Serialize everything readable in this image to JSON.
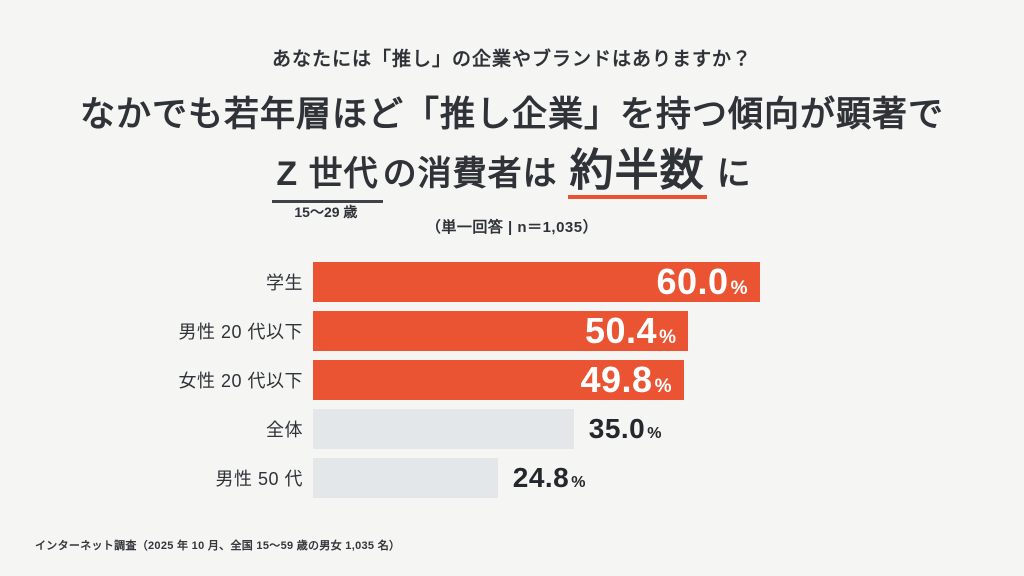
{
  "page": {
    "question": "あなたには「推し」の企業やブランドはありますか？",
    "headline": {
      "line1": "なかでも若年層ほど「推し企業」を持つ傾向が顕著で",
      "line2_zgen": "Z 世代",
      "line2_zgen_note": "15〜29 歳",
      "line2_mid": "の消費者は",
      "line2_emphasis": "約半数",
      "line2_suffix": "に"
    },
    "subtitle": "（単一回答 | n＝1,035）",
    "footnote": "インターネット調査（2025 年 10 月、全国 15〜59 歳の男女 1,035 名）"
  },
  "colors": {
    "accent_orange": "#EB5433",
    "bar_gray": "#E4E7E9",
    "text_dark": "#2F3338",
    "background": "#F5F5F4",
    "underline_dark": "#3F4348",
    "value_text_inside": "#FFFFFF",
    "value_text_outside": "#24272B"
  },
  "chart_data": {
    "type": "bar",
    "orientation": "horizontal",
    "title": "あなたには「推し」の企業やブランドはありますか？",
    "subtitle": "（単一回答 | n＝1,035）",
    "categories": [
      "学生",
      "男性 20 代以下",
      "女性 20 代以下",
      "全体",
      "男性 50 代"
    ],
    "values": [
      60.0,
      50.4,
      49.8,
      35.0,
      24.8
    ],
    "value_labels": [
      "60.0",
      "50.4",
      "49.8",
      "35.0",
      "24.8"
    ],
    "unit": "%",
    "highlighted": [
      true,
      true,
      true,
      false,
      false
    ],
    "value_label_position": [
      "inside",
      "inside",
      "inside",
      "outside",
      "outside"
    ],
    "xlim": [
      0,
      60
    ],
    "grid": false,
    "legend": false
  }
}
